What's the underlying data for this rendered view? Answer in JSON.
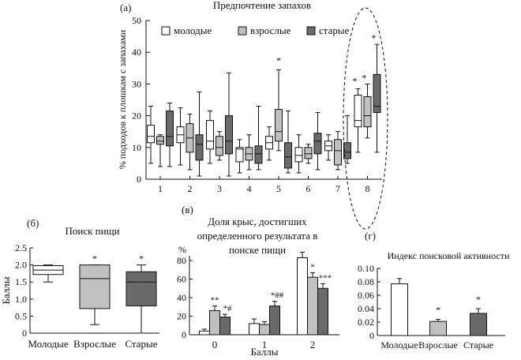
{
  "colors": {
    "young": "#ffffff",
    "adult": "#c0c0c0",
    "old": "#6a6a6a",
    "stroke": "#111111"
  },
  "chart_data": [
    {
      "id": "a",
      "type": "box",
      "panel_label": "(a)",
      "title": "Предпочтение запахов",
      "ylabel": "% подходов к плошкам с запахами",
      "ylim": [
        0,
        50
      ],
      "yticks": [
        "0",
        "10",
        "20",
        "30",
        "40",
        "50"
      ],
      "categories": [
        "1",
        "2",
        "3",
        "4",
        "5",
        "6",
        "7",
        "8"
      ],
      "legend": [
        "молодые",
        "взрослые",
        "старые"
      ],
      "series": [
        {
          "name": "молодые",
          "boxes": [
            [
              5,
              11.5,
              13.5,
              17,
              23
            ],
            [
              4.5,
              11.5,
              14,
              16.5,
              22.5
            ],
            [
              5,
              9.5,
              12,
              18.5,
              21.5
            ],
            [
              2,
              5.5,
              9.5,
              10,
              12.5
            ],
            [
              6,
              9.5,
              11.5,
              13.5,
              16.5
            ],
            [
              2,
              5.5,
              7.5,
              10,
              14
            ],
            [
              6,
              9,
              10.5,
              12,
              14
            ],
            [
              8.5,
              16.5,
              18.5,
              26.5,
              28.5
            ]
          ]
        },
        {
          "name": "взрослые",
          "boxes": [
            [
              4,
              11,
              12,
              13.5,
              14
            ],
            [
              3,
              8.5,
              13,
              17.5,
              20.5
            ],
            [
              6,
              7.5,
              10,
              13.5,
              15
            ],
            [
              3,
              6,
              8,
              10,
              14
            ],
            [
              9,
              12,
              15,
              22,
              34.5
            ],
            [
              5,
              6.5,
              8,
              10,
              11
            ],
            [
              3,
              4.5,
              9,
              12.5,
              15
            ],
            [
              13,
              16.5,
              20,
              26,
              30
            ]
          ]
        },
        {
          "name": "старые",
          "boxes": [
            [
              4,
              10.5,
              13.5,
              21.5,
              24
            ],
            [
              1,
              6,
              11,
              14,
              27.5
            ],
            [
              1,
              8,
              12,
              20,
              33.5
            ],
            [
              3,
              5,
              8,
              10.5,
              23
            ],
            [
              2,
              3.5,
              7,
              11.5,
              21.5
            ],
            [
              3,
              8,
              12,
              14.5,
              21
            ],
            [
              5,
              6.5,
              8.5,
              11.5,
              20
            ],
            [
              8.5,
              21,
              23,
              33,
              42.5
            ]
          ]
        }
      ],
      "annotations": [
        {
          "category": "5",
          "series": "взрослые",
          "text": "*"
        },
        {
          "category": "8",
          "series": "молодые",
          "text": "*"
        },
        {
          "category": "8",
          "series": "взрослые",
          "text": "*"
        },
        {
          "category": "8",
          "series": "старые",
          "text": "*"
        }
      ],
      "highlight": "8"
    },
    {
      "id": "b",
      "type": "box",
      "panel_label": "(б)",
      "title": "Поиск пищи",
      "ylabel": "Баллы",
      "ylim": [
        0,
        2.5
      ],
      "yticks": [
        "0",
        "0.5",
        "1.0",
        "1.5",
        "2.0",
        "2.5"
      ],
      "categories": [
        "Молодые",
        "Взрослые",
        "Старые"
      ],
      "boxes": [
        [
          1.5,
          1.72,
          1.85,
          1.98,
          2.0
        ],
        [
          0.25,
          0.72,
          1.6,
          2.0,
          2.0
        ],
        [
          0.0,
          0.8,
          1.5,
          1.8,
          2.0
        ]
      ],
      "annotations": [
        "",
        "*",
        "*"
      ]
    },
    {
      "id": "c",
      "type": "bar",
      "panel_label": "(в)",
      "title": [
        "Доля крыс, достигших",
        "определенного результата в",
        "поиске пищи"
      ],
      "ylabel": "%",
      "xlabel": "Баллы",
      "ylim": [
        0,
        80
      ],
      "yticks": [
        "0",
        "20",
        "40",
        "60",
        "80"
      ],
      "categories": [
        "0",
        "1",
        "2"
      ],
      "series": [
        {
          "name": "Молодые",
          "values": [
            4,
            12,
            83
          ],
          "errors": [
            2,
            5,
            6
          ]
        },
        {
          "name": "Взрослые",
          "values": [
            26,
            11,
            62
          ],
          "errors": [
            5,
            3,
            5
          ]
        },
        {
          "name": "Старые",
          "values": [
            19,
            31,
            50
          ],
          "errors": [
            3,
            5,
            5
          ]
        }
      ],
      "annotations": [
        [
          "",
          "**",
          "*#"
        ],
        [
          "",
          "",
          "*##"
        ],
        [
          "",
          "*",
          "***"
        ]
      ]
    },
    {
      "id": "d",
      "type": "bar",
      "panel_label": "(г)",
      "title": "Индекс поисковой активности",
      "ylim": [
        0,
        0.1
      ],
      "yticks": [
        "0",
        "0.02",
        "0.04",
        "0.06",
        "0.08",
        "0.10"
      ],
      "categories": [
        "Молодые",
        "Взрослые",
        "Старые"
      ],
      "values": [
        0.077,
        0.021,
        0.033
      ],
      "errors": [
        0.008,
        0.003,
        0.007
      ],
      "annotations": [
        "",
        "*",
        "*"
      ]
    }
  ]
}
